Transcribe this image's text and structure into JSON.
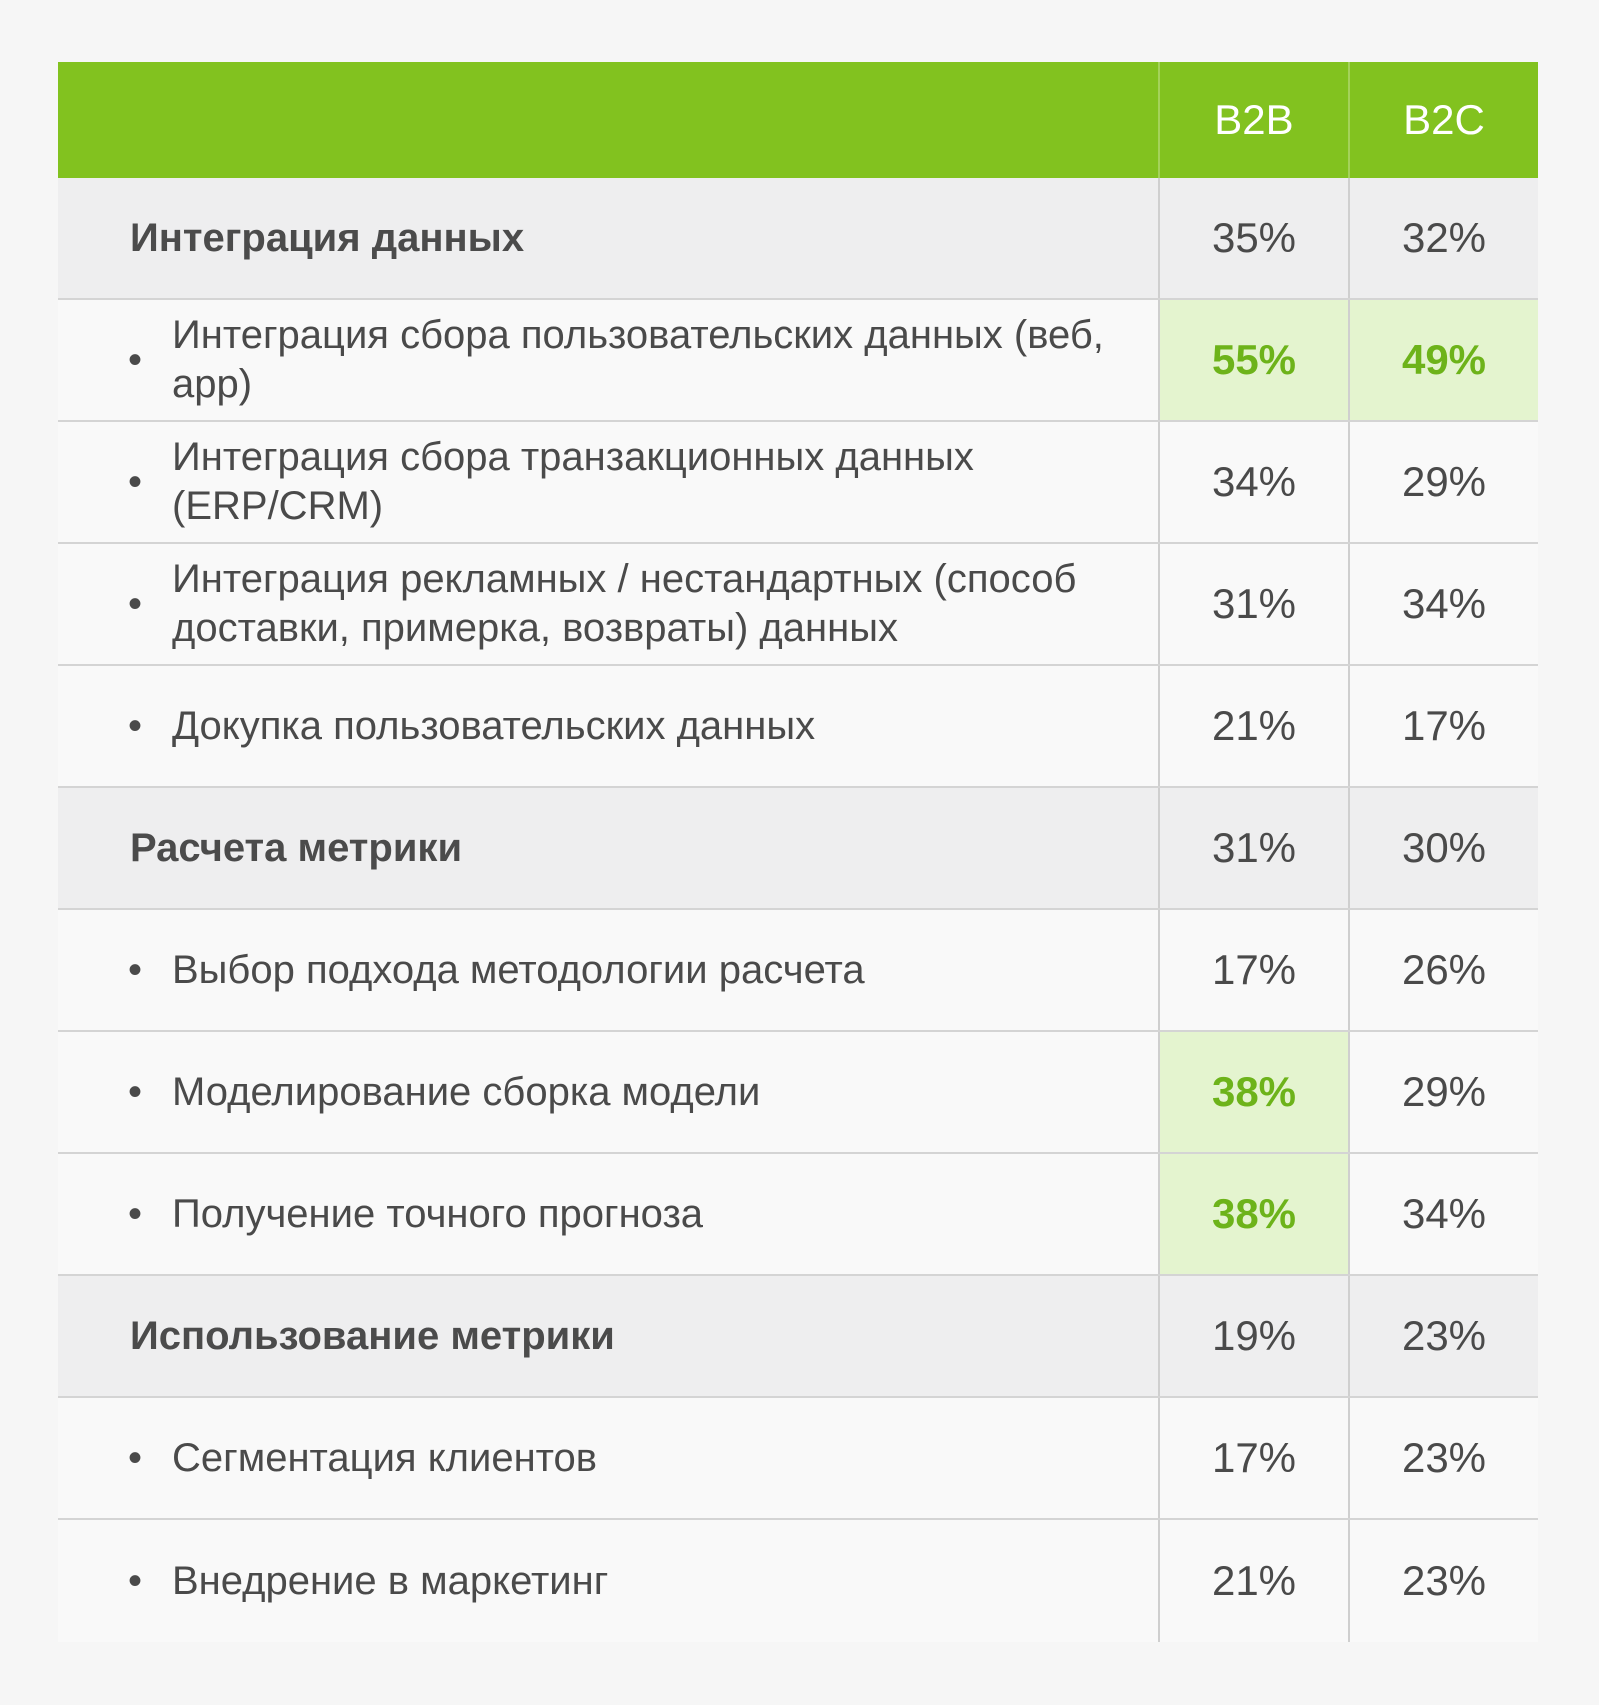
{
  "table": {
    "columns": [
      "",
      "B2B",
      "B2C"
    ],
    "rows": [
      {
        "type": "group",
        "label": "Интеграция данных",
        "b2b": "35%",
        "b2c": "32%",
        "b2b_hl": false,
        "b2c_hl": false
      },
      {
        "type": "item",
        "label": "Интеграция сбора пользовательских данных (веб, app)",
        "b2b": "55%",
        "b2c": "49%",
        "b2b_hl": true,
        "b2c_hl": true
      },
      {
        "type": "item",
        "label": "Интеграция сбора транзакционных данных (ERP/CRM)",
        "b2b": "34%",
        "b2c": "29%",
        "b2b_hl": false,
        "b2c_hl": false
      },
      {
        "type": "item",
        "label": "Интеграция рекламных / нестандартных (способ доставки, примерка, возвраты) данных",
        "b2b": "31%",
        "b2c": "34%",
        "b2b_hl": false,
        "b2c_hl": false
      },
      {
        "type": "item",
        "label": "Докупка пользовательских данных",
        "b2b": "21%",
        "b2c": "17%",
        "b2b_hl": false,
        "b2c_hl": false
      },
      {
        "type": "group",
        "label": "Расчета метрики",
        "b2b": "31%",
        "b2c": "30%",
        "b2b_hl": false,
        "b2c_hl": false
      },
      {
        "type": "item",
        "label": "Выбор подхода методологии расчета",
        "b2b": "17%",
        "b2c": "26%",
        "b2b_hl": false,
        "b2c_hl": false
      },
      {
        "type": "item",
        "label": "Моделирование сборка модели",
        "b2b": "38%",
        "b2c": "29%",
        "b2b_hl": true,
        "b2c_hl": false
      },
      {
        "type": "item",
        "label": "Получение точного прогноза",
        "b2b": "38%",
        "b2c": "34%",
        "b2b_hl": true,
        "b2c_hl": false
      },
      {
        "type": "group",
        "label": "Использование метрики",
        "b2b": "19%",
        "b2c": "23%",
        "b2b_hl": false,
        "b2c_hl": false
      },
      {
        "type": "item",
        "label": "Сегментация клиентов",
        "b2b": "17%",
        "b2c": "23%",
        "b2b_hl": false,
        "b2c_hl": false
      },
      {
        "type": "item",
        "label": "Внедрение в маркетинг",
        "b2b": "21%",
        "b2c": "23%",
        "b2b_hl": false,
        "b2c_hl": false
      }
    ]
  },
  "colors": {
    "header_bg": "#82c21f",
    "highlight_bg": "#e4f4cf",
    "highlight_text": "#6db31a"
  }
}
